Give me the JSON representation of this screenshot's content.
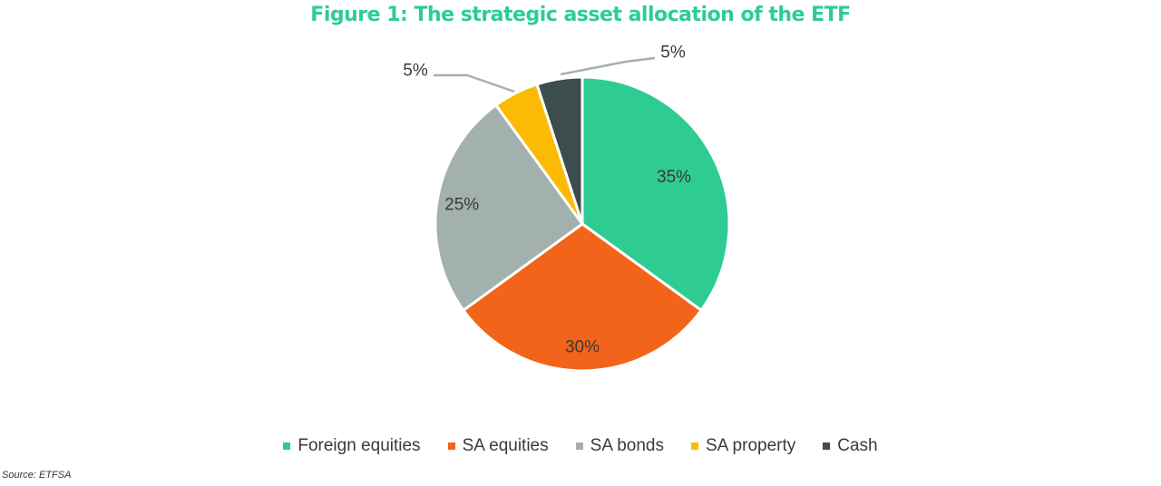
{
  "chart_data": {
    "type": "pie",
    "title": "Figure 1: The strategic asset allocation of the ETF",
    "categories": [
      "Foreign equities",
      "SA equities",
      "SA bonds",
      "SA property",
      "Cash"
    ],
    "values": [
      35,
      30,
      25,
      5,
      5
    ],
    "labels": [
      "35%",
      "30%",
      "25%",
      "5%",
      "5%"
    ],
    "colors": [
      "#2ecc92",
      "#f26419",
      "#a3b1ae",
      "#fbbb05",
      "#3d4c4d"
    ],
    "start_angle_deg": 0,
    "direction": "clockwise",
    "legend_position": "bottom"
  },
  "colors": {
    "title": "#2ecc92",
    "text": "#3a3a3a",
    "leader_line": "#a3b1ae"
  },
  "source": "Source: ETFSA"
}
